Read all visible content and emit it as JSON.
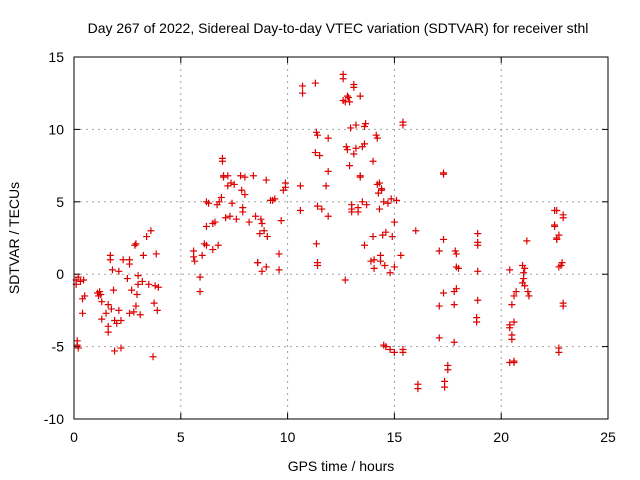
{
  "chart_data": {
    "type": "scatter",
    "title": "Day 267 of 2022, Sidereal Day-to-day VTEC variation (SDTVAR) for receiver sthl",
    "xlabel": "GPS time / hours",
    "ylabel": "SDTVAR / TECUs",
    "xlim": [
      0,
      25
    ],
    "ylim": [
      -10,
      15
    ],
    "xticks": [
      0,
      5,
      10,
      15,
      20,
      25
    ],
    "xtick_labels": [
      "0",
      "5",
      "10",
      "15",
      "20",
      "25"
    ],
    "yticks": [
      -10,
      -5,
      0,
      5,
      10,
      15
    ],
    "ytick_labels": [
      "-10",
      "-5",
      "0",
      "5",
      "10",
      "15"
    ],
    "grid": true,
    "marker": "+",
    "color": "#dd0000",
    "series": [
      {
        "name": "SDTVAR",
        "points": [
          [
            0.1,
            -0.4
          ],
          [
            0.1,
            -0.7
          ],
          [
            0.15,
            -4.6
          ],
          [
            0.15,
            -4.9
          ],
          [
            0.2,
            -5.1
          ],
          [
            0.2,
            -0.2
          ],
          [
            0.3,
            -0.5
          ],
          [
            0.4,
            -1.7
          ],
          [
            0.4,
            -2.7
          ],
          [
            0.45,
            -0.4
          ],
          [
            0.5,
            -1.5
          ],
          [
            1.1,
            -1.3
          ],
          [
            1.15,
            -1.5
          ],
          [
            1.2,
            -1.2
          ],
          [
            1.25,
            -1.4
          ],
          [
            1.3,
            -1.9
          ],
          [
            1.3,
            -3.1
          ],
          [
            1.5,
            -2.7
          ],
          [
            1.6,
            -2.1
          ],
          [
            1.6,
            -3.6
          ],
          [
            1.6,
            -4.0
          ],
          [
            1.7,
            1.3
          ],
          [
            1.7,
            1.0
          ],
          [
            1.75,
            -2.4
          ],
          [
            1.8,
            0.3
          ],
          [
            1.85,
            -1.1
          ],
          [
            1.9,
            -3.2
          ],
          [
            1.9,
            -5.3
          ],
          [
            2.0,
            -3.4
          ],
          [
            2.1,
            0.2
          ],
          [
            2.1,
            -2.5
          ],
          [
            2.2,
            -5.1
          ],
          [
            2.2,
            -3.2
          ],
          [
            2.3,
            1.0
          ],
          [
            2.5,
            -0.3
          ],
          [
            2.6,
            1.0
          ],
          [
            2.6,
            0.7
          ],
          [
            2.6,
            -2.7
          ],
          [
            2.7,
            -1.1
          ],
          [
            2.8,
            -2.6
          ],
          [
            2.85,
            2.0
          ],
          [
            2.9,
            2.1
          ],
          [
            2.9,
            -2.2
          ],
          [
            2.95,
            -1.4
          ],
          [
            3.0,
            -0.1
          ],
          [
            3.0,
            -0.7
          ],
          [
            3.1,
            -2.8
          ],
          [
            3.2,
            -0.5
          ],
          [
            3.25,
            1.3
          ],
          [
            3.4,
            2.6
          ],
          [
            3.5,
            -0.7
          ],
          [
            3.6,
            3.0
          ],
          [
            3.7,
            -5.7
          ],
          [
            3.75,
            -2.0
          ],
          [
            3.8,
            -0.8
          ],
          [
            3.85,
            1.4
          ],
          [
            3.9,
            -2.5
          ],
          [
            3.95,
            -0.9
          ],
          [
            5.6,
            1.6
          ],
          [
            5.6,
            1.2
          ],
          [
            5.65,
            0.9
          ],
          [
            5.9,
            -0.2
          ],
          [
            5.9,
            -1.2
          ],
          [
            6.0,
            1.3
          ],
          [
            6.1,
            2.1
          ],
          [
            6.2,
            3.3
          ],
          [
            6.2,
            5.0
          ],
          [
            6.2,
            2.0
          ],
          [
            6.3,
            4.9
          ],
          [
            6.5,
            1.7
          ],
          [
            6.5,
            3.5
          ],
          [
            6.6,
            3.6
          ],
          [
            6.7,
            4.8
          ],
          [
            6.75,
            2.0
          ],
          [
            6.8,
            5.0
          ],
          [
            6.9,
            5.3
          ],
          [
            6.95,
            8.0
          ],
          [
            6.95,
            7.8
          ],
          [
            7.0,
            6.8
          ],
          [
            7.0,
            6.7
          ],
          [
            7.1,
            3.9
          ],
          [
            7.2,
            6.1
          ],
          [
            7.2,
            6.8
          ],
          [
            7.3,
            4.0
          ],
          [
            7.35,
            6.3
          ],
          [
            7.4,
            4.9
          ],
          [
            7.5,
            6.2
          ],
          [
            7.6,
            3.8
          ],
          [
            7.8,
            6.8
          ],
          [
            7.85,
            5.8
          ],
          [
            7.9,
            4.6
          ],
          [
            7.9,
            4.3
          ],
          [
            8.0,
            6.7
          ],
          [
            8.0,
            5.5
          ],
          [
            8.2,
            3.6
          ],
          [
            8.4,
            6.8
          ],
          [
            8.5,
            4.0
          ],
          [
            8.6,
            0.8
          ],
          [
            8.6,
            0.8
          ],
          [
            8.7,
            2.8
          ],
          [
            8.75,
            3.8
          ],
          [
            8.8,
            3.5
          ],
          [
            8.8,
            0.2
          ],
          [
            8.9,
            3.0
          ],
          [
            9.0,
            6.5
          ],
          [
            9.0,
            0.5
          ],
          [
            9.05,
            2.6
          ],
          [
            9.2,
            5.1
          ],
          [
            9.3,
            5.1
          ],
          [
            9.4,
            5.2
          ],
          [
            9.6,
            0.3
          ],
          [
            9.6,
            1.4
          ],
          [
            9.7,
            3.7
          ],
          [
            9.8,
            5.8
          ],
          [
            9.9,
            6.3
          ],
          [
            9.9,
            6.0
          ],
          [
            10.6,
            6.1
          ],
          [
            10.6,
            4.4
          ],
          [
            10.7,
            12.5
          ],
          [
            10.7,
            13.0
          ],
          [
            11.3,
            13.2
          ],
          [
            11.3,
            8.4
          ],
          [
            11.35,
            9.8
          ],
          [
            11.4,
            9.6
          ],
          [
            11.35,
            2.1
          ],
          [
            11.4,
            0.6
          ],
          [
            11.4,
            0.8
          ],
          [
            11.4,
            4.7
          ],
          [
            11.5,
            8.2
          ],
          [
            11.6,
            4.5
          ],
          [
            11.8,
            6.1
          ],
          [
            11.9,
            4.0
          ],
          [
            11.9,
            7.1
          ],
          [
            11.9,
            9.4
          ],
          [
            12.6,
            13.5
          ],
          [
            12.6,
            13.8
          ],
          [
            12.6,
            12.0
          ],
          [
            12.7,
            -0.4
          ],
          [
            12.7,
            11.9
          ],
          [
            12.75,
            8.8
          ],
          [
            12.8,
            8.6
          ],
          [
            12.8,
            12.3
          ],
          [
            12.85,
            12.2
          ],
          [
            12.9,
            7.5
          ],
          [
            12.95,
            10.1
          ],
          [
            12.9,
            11.9
          ],
          [
            13.0,
            4.5
          ],
          [
            13.0,
            4.8
          ],
          [
            13.0,
            4.3
          ],
          [
            13.1,
            13.1
          ],
          [
            13.1,
            12.9
          ],
          [
            13.1,
            8.3
          ],
          [
            13.2,
            8.7
          ],
          [
            13.2,
            10.3
          ],
          [
            13.3,
            4.6
          ],
          [
            13.3,
            4.3
          ],
          [
            13.4,
            12.3
          ],
          [
            13.4,
            6.8
          ],
          [
            13.4,
            6.7
          ],
          [
            13.5,
            8.8
          ],
          [
            13.5,
            5.0
          ],
          [
            13.6,
            2.0
          ],
          [
            13.6,
            9.0
          ],
          [
            13.65,
            10.4
          ],
          [
            13.6,
            10.2
          ],
          [
            13.7,
            4.8
          ],
          [
            13.9,
            0.9
          ],
          [
            14.0,
            2.6
          ],
          [
            14.0,
            7.8
          ],
          [
            14.05,
            1.0
          ],
          [
            14.05,
            0.4
          ],
          [
            14.15,
            9.6
          ],
          [
            14.2,
            9.4
          ],
          [
            14.2,
            6.2
          ],
          [
            14.25,
            5.6
          ],
          [
            14.3,
            4.5
          ],
          [
            14.3,
            6.3
          ],
          [
            14.35,
            1.3
          ],
          [
            14.35,
            0.9
          ],
          [
            14.4,
            5.9
          ],
          [
            14.4,
            5.8
          ],
          [
            14.45,
            2.7
          ],
          [
            14.5,
            -4.9
          ],
          [
            14.5,
            5.0
          ],
          [
            14.55,
            0.6
          ],
          [
            14.6,
            -5.0
          ],
          [
            14.6,
            2.9
          ],
          [
            14.7,
            4.9
          ],
          [
            14.8,
            -5.2
          ],
          [
            14.8,
            0.1
          ],
          [
            14.85,
            5.2
          ],
          [
            14.9,
            2.6
          ],
          [
            15.0,
            -5.4
          ],
          [
            15.0,
            0.5
          ],
          [
            15.0,
            3.6
          ],
          [
            15.1,
            5.1
          ],
          [
            15.3,
            1.3
          ],
          [
            15.4,
            10.5
          ],
          [
            15.4,
            10.3
          ],
          [
            15.4,
            -5.2
          ],
          [
            15.4,
            -5.4
          ],
          [
            16.0,
            3.0
          ],
          [
            16.1,
            -7.6
          ],
          [
            16.1,
            -7.9
          ],
          [
            17.1,
            -2.2
          ],
          [
            17.1,
            1.6
          ],
          [
            17.1,
            -4.4
          ],
          [
            17.3,
            6.9
          ],
          [
            17.3,
            -1.3
          ],
          [
            17.3,
            7.0
          ],
          [
            17.3,
            2.4
          ],
          [
            17.35,
            -7.4
          ],
          [
            17.35,
            -7.8
          ],
          [
            17.5,
            -6.3
          ],
          [
            17.5,
            -6.6
          ],
          [
            17.8,
            -2.1
          ],
          [
            17.8,
            -4.7
          ],
          [
            17.8,
            -1.2
          ],
          [
            17.85,
            1.6
          ],
          [
            17.9,
            0.5
          ],
          [
            17.9,
            -1.0
          ],
          [
            17.9,
            1.4
          ],
          [
            18.0,
            0.4
          ],
          [
            18.85,
            -3.0
          ],
          [
            18.85,
            -3.3
          ],
          [
            18.9,
            2.2
          ],
          [
            18.9,
            2.0
          ],
          [
            18.9,
            2.8
          ],
          [
            18.9,
            -1.8
          ],
          [
            18.9,
            0.2
          ],
          [
            20.4,
            0.3
          ],
          [
            20.4,
            -3.5
          ],
          [
            20.4,
            -3.7
          ],
          [
            20.4,
            -6.1
          ],
          [
            20.5,
            -4.2
          ],
          [
            20.5,
            -4.5
          ],
          [
            20.5,
            -2.1
          ],
          [
            20.6,
            -1.5
          ],
          [
            20.6,
            -3.3
          ],
          [
            20.6,
            -6.0
          ],
          [
            20.6,
            -6.1
          ],
          [
            20.7,
            -1.2
          ],
          [
            21.0,
            0.6
          ],
          [
            21.0,
            -0.6
          ],
          [
            21.05,
            0.1
          ],
          [
            21.05,
            -0.3
          ],
          [
            21.1,
            -0.8
          ],
          [
            21.1,
            0.4
          ],
          [
            21.2,
            2.3
          ],
          [
            21.25,
            -1.2
          ],
          [
            21.3,
            -1.5
          ],
          [
            22.5,
            4.4
          ],
          [
            22.5,
            3.3
          ],
          [
            22.5,
            3.4
          ],
          [
            22.6,
            2.4
          ],
          [
            22.6,
            2.5
          ],
          [
            22.6,
            4.4
          ],
          [
            22.7,
            -5.1
          ],
          [
            22.7,
            -5.4
          ],
          [
            22.7,
            2.7
          ],
          [
            22.7,
            0.5
          ],
          [
            22.8,
            0.6
          ],
          [
            22.85,
            0.8
          ],
          [
            22.9,
            -2.0
          ],
          [
            22.9,
            4.1
          ],
          [
            22.9,
            3.9
          ],
          [
            22.9,
            -2.2
          ]
        ]
      }
    ]
  }
}
